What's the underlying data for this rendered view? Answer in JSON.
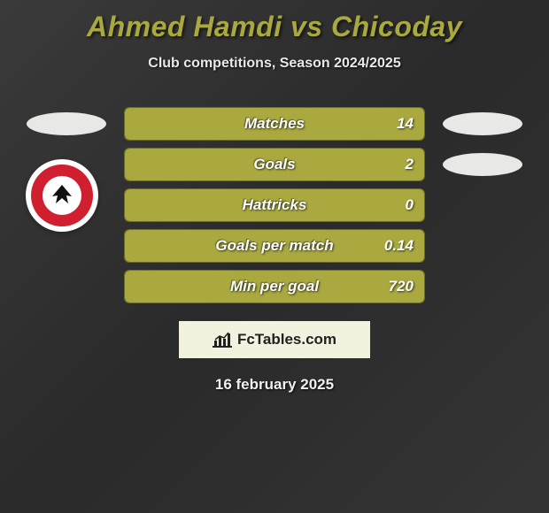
{
  "title": "Ahmed Hamdi vs Chicoday",
  "subtitle": "Club competitions, Season 2024/2025",
  "date": "16 february 2025",
  "brand": "FcTables.com",
  "colors": {
    "accent": "#a9a93f",
    "bg": "#2f2f2f",
    "oval": "#e8e8e6",
    "badge_red": "#d01f2e",
    "brand_bg": "#f2f2de",
    "text_light": "#ffffff"
  },
  "stats": [
    {
      "label": "Matches",
      "value": "14",
      "fill_pct": 100,
      "show_left_oval": true,
      "show_right_oval": true,
      "show_badge": false
    },
    {
      "label": "Goals",
      "value": "2",
      "fill_pct": 100,
      "show_left_oval": false,
      "show_right_oval": true,
      "show_badge": false
    },
    {
      "label": "Hattricks",
      "value": "0",
      "fill_pct": 100,
      "show_left_oval": false,
      "show_right_oval": false,
      "show_badge": true
    },
    {
      "label": "Goals per match",
      "value": "0.14",
      "fill_pct": 100,
      "show_left_oval": false,
      "show_right_oval": false,
      "show_badge": false
    },
    {
      "label": "Min per goal",
      "value": "720",
      "fill_pct": 100,
      "show_left_oval": false,
      "show_right_oval": false,
      "show_badge": false
    }
  ]
}
